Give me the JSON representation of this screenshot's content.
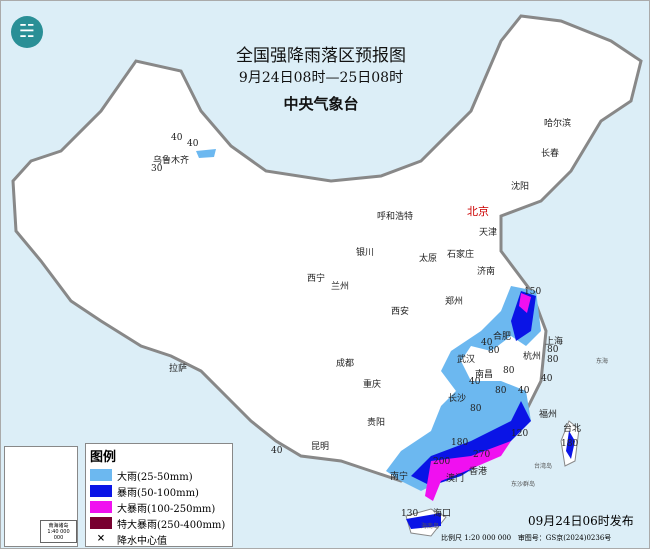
{
  "header": {
    "title": "全国强降雨落区预报图",
    "period": "9月24日08时—25日08时",
    "issuer": "中央气象台",
    "logo_icon": "cma-logo"
  },
  "cities": [
    {
      "name": "哈尔滨"
    },
    {
      "name": "长春"
    },
    {
      "name": "沈阳"
    },
    {
      "name": "北京"
    },
    {
      "name": "天津"
    },
    {
      "name": "呼和浩特"
    },
    {
      "name": "石家庄"
    },
    {
      "name": "太原"
    },
    {
      "name": "济南"
    },
    {
      "name": "银川"
    },
    {
      "name": "西宁"
    },
    {
      "name": "兰州"
    },
    {
      "name": "郑州"
    },
    {
      "name": "西安"
    },
    {
      "name": "合肥"
    },
    {
      "name": "上海"
    },
    {
      "name": "武汉"
    },
    {
      "name": "杭州"
    },
    {
      "name": "南昌"
    },
    {
      "name": "长沙"
    },
    {
      "name": "福州"
    },
    {
      "name": "台北"
    },
    {
      "name": "成都"
    },
    {
      "name": "重庆"
    },
    {
      "name": "贵阳"
    },
    {
      "name": "昆明"
    },
    {
      "name": "拉萨"
    },
    {
      "name": "南宁"
    },
    {
      "name": "澳门"
    },
    {
      "name": "香港"
    },
    {
      "name": "海口"
    },
    {
      "name": "乌鲁木齐"
    }
  ],
  "minor_labels": {
    "sea_east": "东海",
    "taiwan_island": "台湾岛",
    "dongsha": "东沙群岛",
    "hainan_island": "海南岛"
  },
  "rain_centers": [
    "40",
    "40",
    "30",
    "40",
    "150",
    "40",
    "80",
    "80",
    "80",
    "80",
    "40",
    "80",
    "40",
    "40",
    "80",
    "180",
    "120",
    "270",
    "200",
    "180",
    "130"
  ],
  "legend": {
    "title": "图例",
    "items": [
      {
        "label": "大雨(25-50mm)",
        "color": "#6cb8f0"
      },
      {
        "label": "暴雨(50-100mm)",
        "color": "#0a14e6"
      },
      {
        "label": "大暴雨(100-250mm)",
        "color": "#f010f0"
      },
      {
        "label": "特大暴雨(250-400mm)",
        "color": "#780030"
      }
    ],
    "center_label": "降水中心值",
    "center_icon": "x-mark"
  },
  "inset": {
    "title": "南海诸岛",
    "scale": "1:40 000 000"
  },
  "footer": {
    "issued": "09月24日06时发布",
    "scale": "比例尺 1:20 000 000",
    "review": "审图号：GS京(2024)0236号"
  }
}
